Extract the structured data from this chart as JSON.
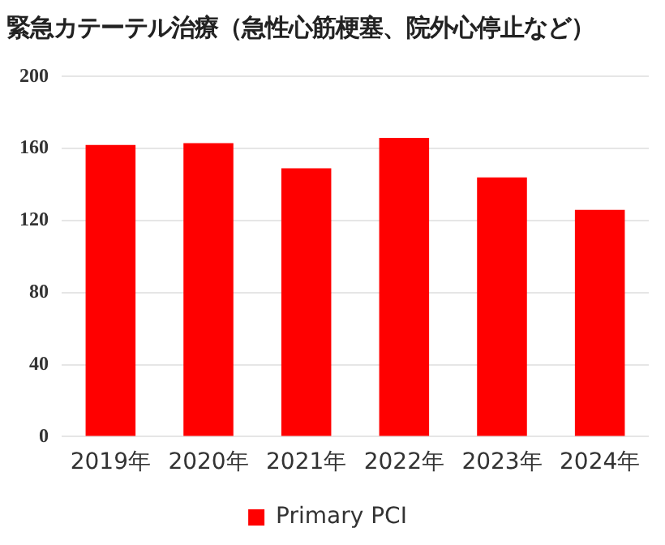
{
  "chart_data": {
    "type": "bar",
    "title": "緊急カテーテル治療（急性心筋梗塞、院外心停止など）",
    "categories": [
      "2019年",
      "2020年",
      "2021年",
      "2022年",
      "2023年",
      "2024年"
    ],
    "series": [
      {
        "name": "Primary PCI",
        "color": "#ff0000",
        "values": [
          162,
          163,
          149,
          166,
          144,
          126
        ]
      }
    ],
    "ylim": [
      0,
      200
    ],
    "yticks": [
      0,
      40,
      80,
      120,
      160,
      200
    ],
    "grid": "y",
    "legend": "bottom"
  }
}
